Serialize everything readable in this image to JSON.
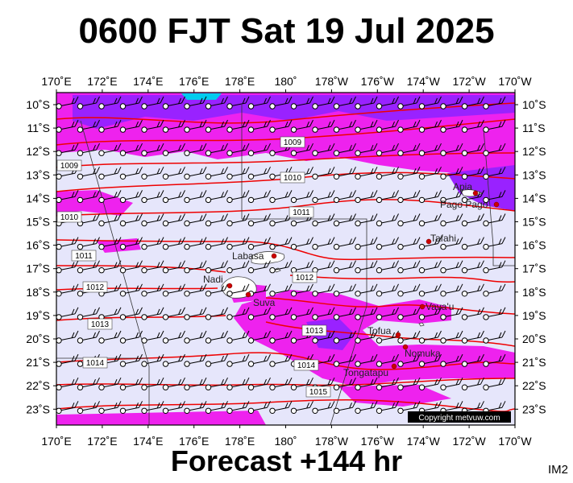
{
  "title": "0600 FJT Sat 19 Jul 2025",
  "footer": "Forecast +144 hr",
  "code": "IM2",
  "copyright": "Copyright metvuw.com",
  "colors": {
    "background": "#e6e6fb",
    "rain_light": "#ee22ee",
    "rain_heavy": "#9922ff",
    "isobar": "#ee0000",
    "cyan": "#00ccee"
  },
  "lon_labels": [
    "170˚E",
    "172˚E",
    "174˚E",
    "176˚E",
    "178˚E",
    "180˚",
    "178˚W",
    "176˚W",
    "174˚W",
    "172˚W",
    "170˚W"
  ],
  "lat_labels": [
    "10˚S",
    "11˚S",
    "12˚S",
    "13˚S",
    "14˚S",
    "15˚S",
    "16˚S",
    "17˚S",
    "18˚S",
    "19˚S",
    "20˚S",
    "21˚S",
    "22˚S",
    "23˚S"
  ],
  "places": [
    {
      "name": "Apia",
      "marker": true
    },
    {
      "name": "Pago Pago",
      "marker": true
    },
    {
      "name": "Tafahi",
      "marker": true
    },
    {
      "name": "Labasa",
      "marker": true
    },
    {
      "name": "Nadi",
      "marker": true
    },
    {
      "name": "Suva",
      "marker": true
    },
    {
      "name": "Vava'u",
      "marker": true
    },
    {
      "name": "Tofua",
      "marker": true
    },
    {
      "name": "Nomuka",
      "marker": true
    },
    {
      "name": "Tongatapu",
      "marker": true
    }
  ],
  "isobar_labels": [
    "1009",
    "1009",
    "1010",
    "1010",
    "1011",
    "1011",
    "1012",
    "1012",
    "1013",
    "1013",
    "1014",
    "1014",
    "1015"
  ]
}
